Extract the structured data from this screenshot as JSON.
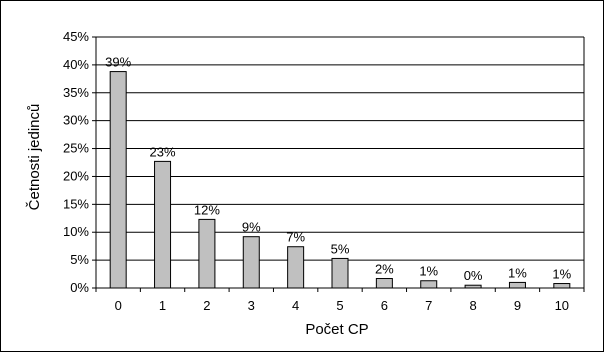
{
  "chart_data": {
    "type": "bar",
    "title": "",
    "xlabel": "Počet CP",
    "ylabel": "Četnosti jedinců",
    "categories": [
      "0",
      "1",
      "2",
      "3",
      "4",
      "5",
      "6",
      "7",
      "8",
      "9",
      "10"
    ],
    "values": [
      38.8,
      22.7,
      12.3,
      9.2,
      7.4,
      5.3,
      1.7,
      1.3,
      0.5,
      1.0,
      0.8
    ],
    "data_labels": [
      "39%",
      "23%",
      "12%",
      "9%",
      "7%",
      "5%",
      "2%",
      "1%",
      "0%",
      "1%",
      "1%"
    ],
    "ylim": [
      0,
      45
    ],
    "yticks": [
      0,
      5,
      10,
      15,
      20,
      25,
      30,
      35,
      40,
      45
    ],
    "ytick_labels": [
      "0%",
      "5%",
      "10%",
      "15%",
      "20%",
      "25%",
      "30%",
      "35%",
      "40%",
      "45%"
    ],
    "grid": true,
    "legend": "none",
    "colors": {
      "bar_fill": "#c0c0c0",
      "bar_stroke": "#000000",
      "grid": "#000000"
    }
  }
}
